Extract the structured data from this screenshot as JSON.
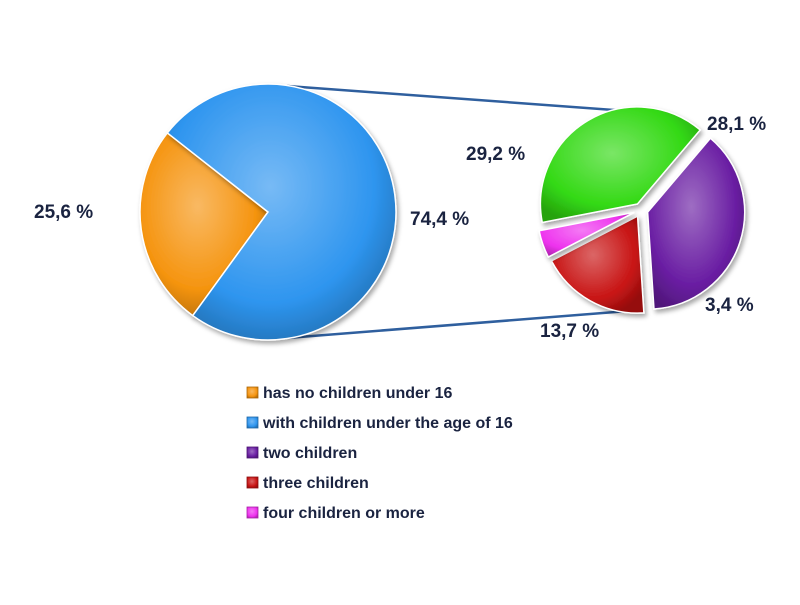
{
  "chart_data": {
    "type": "pie",
    "main_pie": {
      "slices": [
        {
          "name": "has no children under 16",
          "value": 25.6,
          "label": "25,6 %",
          "color": "#f5940f"
        },
        {
          "name": "with children under the age of 16",
          "value": 74.4,
          "label": "74,4 %",
          "color": "#2e95ef"
        }
      ]
    },
    "detail_pie": {
      "slices": [
        {
          "name": "",
          "value": 29.2,
          "label": "29,2 %",
          "color": "#33d914"
        },
        {
          "name": "two children",
          "value": 28.1,
          "label": "28,1 %",
          "color": "#6a1ea3"
        },
        {
          "name": "three children",
          "value": 13.7,
          "label": "13,7 %",
          "color": "#c81414"
        },
        {
          "name": "four children or more",
          "value": 3.4,
          "label": "3,4 %",
          "color": "#ee32ee"
        }
      ]
    },
    "legend": [
      {
        "label": "has no children under 16",
        "color": "#f5940f"
      },
      {
        "label": "with children under the age of 16",
        "color": "#2e95ef"
      },
      {
        "label": "two children",
        "color": "#6a1ea3"
      },
      {
        "label": "three children",
        "color": "#c81414"
      },
      {
        "label": "four children or more",
        "color": "#ee32ee"
      }
    ],
    "legend_placement": "bottom-center",
    "connector_color": "#2f5f9e"
  }
}
